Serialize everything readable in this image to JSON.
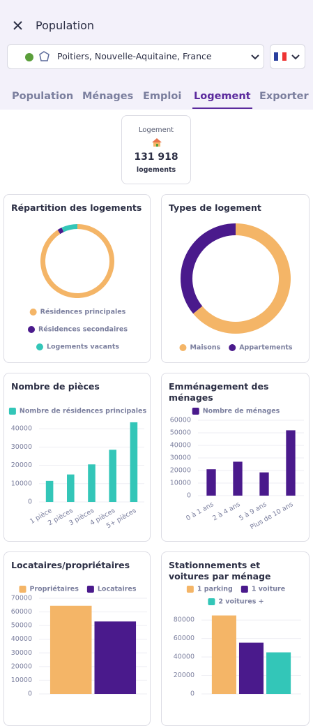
{
  "header": {
    "title": "Population"
  },
  "location": {
    "text": "Poitiers, Nouvelle-Aquitaine, France"
  },
  "tabs": {
    "items": [
      "Population",
      "Ménages",
      "Emploi",
      "Logement",
      "Exporter"
    ],
    "active": 3
  },
  "kpi": {
    "title": "Logement",
    "value": "131 918",
    "unit": "logements"
  },
  "chart_data": [
    {
      "type": "doughnut",
      "title": "Répartition des logements",
      "categories": [
        "Résidences principales",
        "Résidences secondaires",
        "Logements vacants"
      ],
      "values": [
        91,
        2,
        7
      ],
      "colors": [
        "#f4b567",
        "#4a1a8c",
        "#33c6b8"
      ]
    },
    {
      "type": "doughnut",
      "title": "Types de logement",
      "categories": [
        "Maisons",
        "Appartements"
      ],
      "values": [
        64,
        36
      ],
      "colors": [
        "#f4b567",
        "#4a1a8c"
      ]
    },
    {
      "type": "bar",
      "title": "Nombre de pièces",
      "categories": [
        "1 pièce",
        "2 pièces",
        "3 pièces",
        "4 pièces",
        "5+ pièces"
      ],
      "series": [
        {
          "name": "Nombre de résidences principales",
          "color": "#33c6b8",
          "values": [
            11500,
            15000,
            20500,
            28500,
            43500
          ]
        }
      ],
      "ylim": [
        0,
        45000
      ],
      "yticks": [
        0,
        10000,
        20000,
        30000,
        40000
      ],
      "grid": true
    },
    {
      "type": "bar",
      "title": "Emménagement des ménages",
      "categories": [
        "0 à 1 ans",
        "2 à 4 ans",
        "5 à 9 ans",
        "Plus de 10 ans"
      ],
      "series": [
        {
          "name": "Nombre de ménages",
          "color": "#4a1a8c",
          "values": [
            21000,
            27000,
            18500,
            52000
          ]
        }
      ],
      "ylim": [
        0,
        60000
      ],
      "yticks": [
        0,
        10000,
        20000,
        30000,
        40000,
        50000,
        60000
      ],
      "grid": true
    },
    {
      "type": "bar",
      "title": "Locataires/propriétaires",
      "categories": [
        null
      ],
      "series": [
        {
          "name": "Propriétaires",
          "color": "#f4b567",
          "values": [
            64500
          ]
        },
        {
          "name": "Locataires",
          "color": "#4a1a8c",
          "values": [
            53000
          ]
        }
      ],
      "ylim": [
        0,
        70000
      ],
      "yticks": [
        0,
        10000,
        20000,
        30000,
        40000,
        50000,
        60000,
        70000
      ],
      "grid": true
    },
    {
      "type": "bar",
      "title": "Stationnements et voitures par ménage",
      "categories": [
        null
      ],
      "series": [
        {
          "name": "1 parking",
          "color": "#f4b567",
          "values": [
            85000
          ]
        },
        {
          "name": "1 voiture",
          "color": "#4a1a8c",
          "values": [
            55500
          ]
        },
        {
          "name": "2 voitures +",
          "color": "#33c6b8",
          "values": [
            45000
          ]
        }
      ],
      "ylim": [
        0,
        90000
      ],
      "yticks": [
        0,
        20000,
        40000,
        60000,
        80000
      ],
      "grid": true
    }
  ]
}
